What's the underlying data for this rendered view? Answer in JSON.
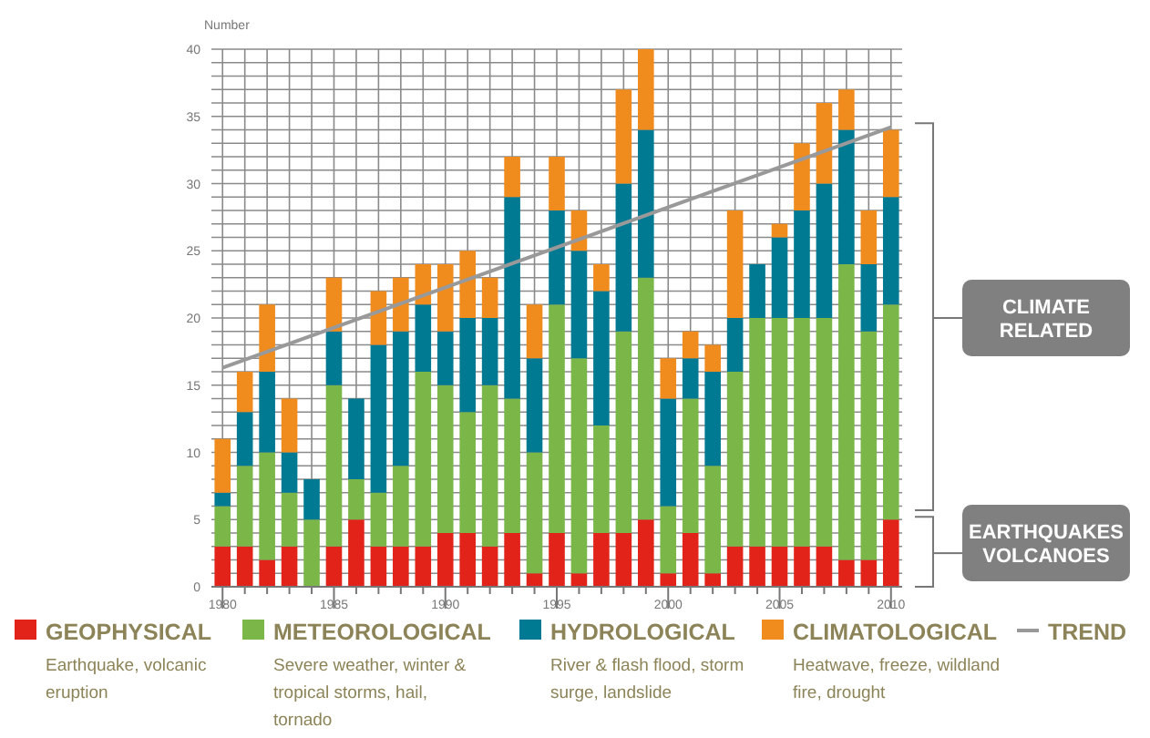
{
  "chart_data": {
    "type": "bar",
    "stacked": true,
    "ylabel": "Number",
    "x": [
      1980,
      1981,
      1982,
      1983,
      1984,
      1985,
      1986,
      1987,
      1988,
      1989,
      1990,
      1991,
      1992,
      1993,
      1994,
      1995,
      1996,
      1997,
      1998,
      1999,
      2000,
      2001,
      2002,
      2003,
      2004,
      2005,
      2006,
      2007,
      2008,
      2009,
      2010
    ],
    "series": [
      {
        "name": "GEOPHYSICAL",
        "color": "#e2231a",
        "values": [
          3,
          3,
          2,
          3,
          0,
          3,
          5,
          3,
          3,
          3,
          4,
          4,
          3,
          4,
          1,
          4,
          1,
          4,
          4,
          5,
          1,
          4,
          1,
          3,
          3,
          3,
          3,
          3,
          2,
          2,
          5
        ]
      },
      {
        "name": "METEOROLOGICAL",
        "color": "#7ab648",
        "values": [
          3,
          6,
          8,
          4,
          5,
          12,
          3,
          4,
          6,
          13,
          11,
          9,
          12,
          10,
          9,
          17,
          16,
          8,
          15,
          18,
          5,
          10,
          8,
          13,
          17,
          17,
          17,
          17,
          22,
          17,
          16
        ]
      },
      {
        "name": "HYDROLOGICAL",
        "color": "#007a92",
        "values": [
          1,
          4,
          6,
          3,
          3,
          4,
          6,
          11,
          10,
          5,
          4,
          7,
          5,
          15,
          7,
          7,
          8,
          10,
          11,
          11,
          8,
          3,
          7,
          4,
          4,
          6,
          8,
          10,
          10,
          5,
          8
        ]
      },
      {
        "name": "CLIMATOLOGICAL",
        "color": "#f08c1e",
        "values": [
          4,
          3,
          5,
          4,
          0,
          4,
          0,
          4,
          4,
          3,
          5,
          5,
          3,
          3,
          4,
          4,
          3,
          2,
          7,
          6,
          3,
          2,
          2,
          8,
          0,
          1,
          5,
          6,
          3,
          4,
          5
        ]
      },
      {
        "name": "TREND",
        "type": "line",
        "color": "#999999",
        "x": [
          1980,
          2010
        ],
        "values": [
          16.3,
          34.2
        ]
      }
    ],
    "xlim": [
      1979.5,
      2010.5
    ],
    "xticks": [
      1980,
      {
        "value": 1981,
        "label": null
      },
      {
        "value": 1982,
        "label": null
      },
      {
        "value": 1983,
        "label": null
      },
      {
        "value": 1984,
        "label": null
      },
      1985,
      {
        "value": 1986,
        "label": null
      },
      {
        "value": 1987,
        "label": null
      },
      {
        "value": 1988,
        "label": null
      },
      {
        "value": 1989,
        "label": null
      },
      1990,
      {
        "value": 1991,
        "label": null
      },
      {
        "value": 1992,
        "label": null
      },
      {
        "value": 1993,
        "label": null
      },
      {
        "value": 1994,
        "label": null
      },
      1995,
      {
        "value": 1996,
        "label": null
      },
      {
        "value": 1997,
        "label": null
      },
      {
        "value": 1998,
        "label": null
      },
      {
        "value": 1999,
        "label": null
      },
      2000,
      {
        "value": 2001,
        "label": null
      },
      {
        "value": 2002,
        "label": null
      },
      {
        "value": 2003,
        "label": null
      },
      {
        "value": 2004,
        "label": null
      },
      2005,
      {
        "value": 2006,
        "label": null
      },
      {
        "value": 2007,
        "label": null
      },
      {
        "value": 2008,
        "label": null
      },
      {
        "value": 2009,
        "label": null
      },
      2010
    ],
    "ylim": [
      0,
      40
    ],
    "yticks": [
      0,
      {
        "value": 1,
        "label": null
      },
      {
        "value": 2,
        "label": null
      },
      {
        "value": 3,
        "label": null
      },
      {
        "value": 4,
        "label": null
      },
      5,
      {
        "value": 6,
        "label": null
      },
      {
        "value": 7,
        "label": null
      },
      {
        "value": 8,
        "label": null
      },
      {
        "value": 9,
        "label": null
      },
      10,
      {
        "value": 11,
        "label": null
      },
      {
        "value": 12,
        "label": null
      },
      {
        "value": 13,
        "label": null
      },
      {
        "value": 14,
        "label": null
      },
      15,
      {
        "value": 16,
        "label": null
      },
      {
        "value": 17,
        "label": null
      },
      {
        "value": 18,
        "label": null
      },
      {
        "value": 19,
        "label": null
      },
      20,
      {
        "value": 21,
        "label": null
      },
      {
        "value": 22,
        "label": null
      },
      {
        "value": 23,
        "label": null
      },
      {
        "value": 24,
        "label": null
      },
      25,
      {
        "value": 26,
        "label": null
      },
      {
        "value": 27,
        "label": null
      },
      {
        "value": 28,
        "label": null
      },
      {
        "value": 29,
        "label": null
      },
      30,
      {
        "value": 31,
        "label": null
      },
      {
        "value": 32,
        "label": null
      },
      {
        "value": 33,
        "label": null
      },
      {
        "value": 34,
        "label": null
      },
      35,
      {
        "value": 36,
        "label": null
      },
      {
        "value": 37,
        "label": null
      },
      {
        "value": 38,
        "label": null
      },
      {
        "value": 39,
        "label": null
      },
      40
    ],
    "grid": true,
    "legend": "bottom",
    "annotations": [
      "CLIMATE RELATED",
      "EARTHQUAKES VOLCANOES",
      "Earthquake, volcanic eruption",
      "Severe weather, winter & tropical storms, hail, tornado",
      "River & flash flood, storm surge, landslide",
      "Heatwave, freeze, wildland fire, drought"
    ]
  }
}
